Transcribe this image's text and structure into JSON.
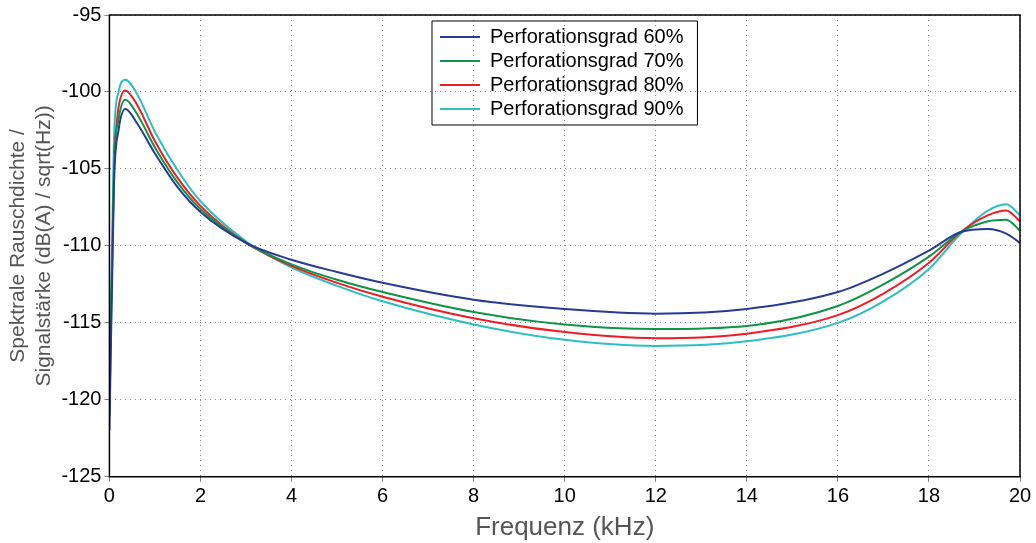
{
  "chart_data": {
    "type": "line",
    "xlabel": "Frequenz (kHz)",
    "ylabel": "Spektrale Rauschdichte / Signalstärke (dB(A) / sqrt(Hz))",
    "x": [
      0,
      0.1,
      0.2,
      0.35,
      0.6,
      1,
      1.5,
      2,
      3,
      4,
      5,
      6,
      8,
      10,
      12,
      14,
      16,
      17,
      18,
      18.7,
      19.3,
      19.7,
      20
    ],
    "series": [
      {
        "name": "Perforationsgrad 60%",
        "color": "#263a96",
        "values": [
          -122,
          -106,
          -102.5,
          -101.1,
          -102,
          -104,
          -106.2,
          -107.8,
          -109.8,
          -110.9,
          -111.7,
          -112.4,
          -113.5,
          -114.1,
          -114.4,
          -114.1,
          -113.0,
          -111.8,
          -110.3,
          -109.1,
          -108.9,
          -109.2,
          -109.8
        ]
      },
      {
        "name": "Perforationsgrad 70%",
        "color": "#0e9447",
        "values": [
          -121,
          -105,
          -101.8,
          -100.5,
          -101.4,
          -103.6,
          -105.9,
          -107.6,
          -109.8,
          -111.2,
          -112.2,
          -113.0,
          -114.3,
          -115.1,
          -115.4,
          -115.2,
          -113.9,
          -112.5,
          -110.7,
          -109.1,
          -108.4,
          -108.3,
          -109.0
        ]
      },
      {
        "name": "Perforationsgrad 80%",
        "color": "#ee1c25",
        "values": [
          null,
          -104,
          -101,
          -99.9,
          -100.8,
          -103.2,
          -105.6,
          -107.4,
          -109.8,
          -111.3,
          -112.4,
          -113.3,
          -114.7,
          -115.6,
          -116.0,
          -115.7,
          -114.5,
          -113.1,
          -111.1,
          -109.1,
          -108.0,
          -107.7,
          -108.4
        ]
      },
      {
        "name": "Perforationsgrad 90%",
        "color": "#2bbfc0",
        "values": [
          -120,
          -103,
          -100,
          -99.2,
          -100.1,
          -102.6,
          -105.1,
          -107.1,
          -109.7,
          -111.4,
          -112.6,
          -113.6,
          -115.1,
          -116.1,
          -116.5,
          -116.2,
          -115.0,
          -113.6,
          -111.5,
          -109.2,
          -107.7,
          -107.3,
          -108.0
        ]
      }
    ],
    "xlim": [
      0,
      20
    ],
    "xticks": [
      0,
      2,
      4,
      6,
      8,
      10,
      12,
      14,
      16,
      18,
      20
    ],
    "ylim": [
      -125,
      -95
    ],
    "yticks": [
      -125,
      -120,
      -115,
      -110,
      -105,
      -100,
      -95
    ],
    "grid": true,
    "legend": "top",
    "line_style": "solid",
    "marker": "none"
  }
}
